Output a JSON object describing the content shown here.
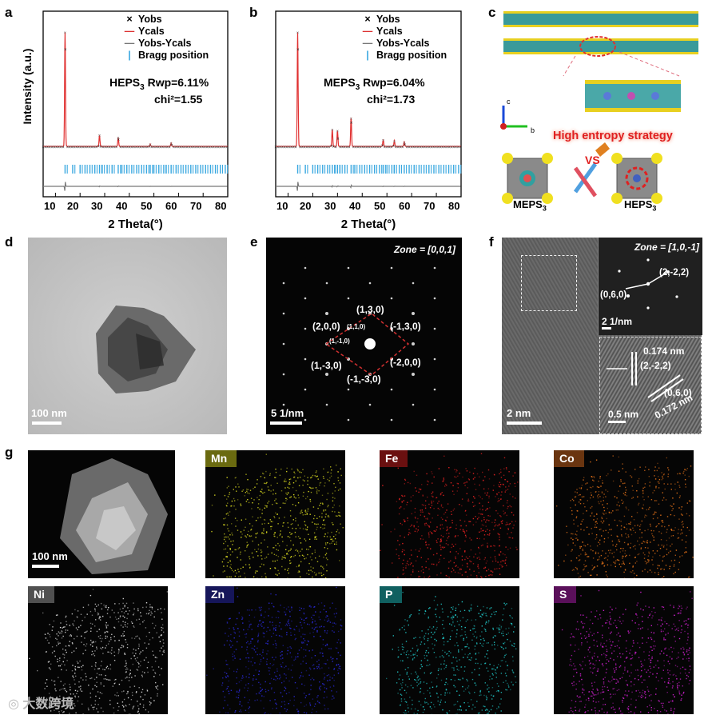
{
  "panels": {
    "a": {
      "label": "a",
      "legend": {
        "yobs": "Yobs",
        "ycals": "Ycals",
        "diff": "Yobs-Ycals",
        "bragg": "Bragg position"
      },
      "fit_name": "HEPS",
      "fit_sub": "3",
      "fit_rwp": "Rwp=6.11%",
      "fit_chi": "chi²=1.55",
      "ylabel": "Intensity (a.u.)",
      "xlabel": "2 Theta(°)",
      "xticks": [
        "10",
        "20",
        "30",
        "40",
        "50",
        "60",
        "70",
        "80"
      ]
    },
    "b": {
      "label": "b",
      "legend": {
        "yobs": "Yobs",
        "ycals": "Ycals",
        "diff": "Yobs-Ycals",
        "bragg": "Bragg position"
      },
      "fit_name": "MEPS",
      "fit_sub": "3",
      "fit_rwp": "Rwp=6.04%",
      "fit_chi": "chi²=1.73",
      "xlabel": "2 Theta(°)",
      "xticks": [
        "10",
        "20",
        "30",
        "40",
        "50",
        "60",
        "70",
        "80"
      ]
    },
    "c": {
      "label": "c",
      "axis_c": "c",
      "axis_b": "b",
      "strategy": "High entropy strategy",
      "vs": "VS",
      "meps": "MEPS",
      "meps_sub": "3",
      "heps": "HEPS",
      "heps_sub": "3"
    },
    "d": {
      "label": "d",
      "scale": "100 nm"
    },
    "e": {
      "label": "e",
      "zone": "Zone = [0,0,1]",
      "scale": "5 1/nm",
      "spots": [
        "(1,3,0)",
        "(-1,3,0)",
        "(2,0,0)",
        "(1,1,0)",
        "(1,-1,0)",
        "(1,-3,0)",
        "(-2,0,0)",
        "(-1,-3,0)"
      ]
    },
    "f": {
      "label": "f",
      "zone": "Zone = [1,0,-1]",
      "fft_a": "(2,-2,2)",
      "fft_b": "(0,6,0)",
      "fft_scale": "2 1/nm",
      "d1": "0.174 nm",
      "d1_plane": "(2,-2,2)",
      "d2_plane": "(0,6,0)",
      "d2": "0.172 nm",
      "scale_main": "2 nm",
      "scale_zoom": "0.5 nm"
    },
    "g": {
      "label": "g",
      "haadf_scale": "100 nm",
      "maps": [
        {
          "el": "Mn",
          "color": "#d8d820",
          "tag_bg": "#6a6a10"
        },
        {
          "el": "Fe",
          "color": "#e02020",
          "tag_bg": "#6a1010"
        },
        {
          "el": "Co",
          "color": "#e07018",
          "tag_bg": "#6a3510"
        },
        {
          "el": "Ni",
          "color": "#dcdcdc",
          "tag_bg": "#505050"
        },
        {
          "el": "Zn",
          "color": "#2a2ad8",
          "tag_bg": "#16165a"
        },
        {
          "el": "P",
          "color": "#20c8c8",
          "tag_bg": "#106060"
        },
        {
          "el": "S",
          "color": "#d020d0",
          "tag_bg": "#5a105a"
        }
      ]
    }
  },
  "chart_data": [
    {
      "type": "line",
      "title": "HEPS3 Rwp=6.11% chi²=1.55",
      "xlabel": "2 Theta(°)",
      "ylabel": "Intensity (a.u.)",
      "xlim": [
        5,
        80
      ],
      "series": [
        {
          "name": "Yobs",
          "peaks": [
            [
              13.9,
              100
            ],
            [
              27.9,
              10
            ],
            [
              35.5,
              8
            ],
            [
              48.5,
              2
            ],
            [
              57.0,
              3
            ]
          ]
        },
        {
          "name": "Ycals",
          "peaks": [
            [
              13.9,
              100
            ],
            [
              27.9,
              10
            ],
            [
              35.5,
              8
            ],
            [
              48.5,
              2
            ],
            [
              57.0,
              3
            ]
          ]
        },
        {
          "name": "Yobs-Ycals",
          "values": "flat near zero with small residual at 13.9"
        },
        {
          "name": "Bragg position",
          "x": [
            13.9,
            17,
            20,
            22,
            24,
            26,
            27.9,
            29,
            31,
            33,
            35.5,
            37,
            39,
            41,
            43,
            45,
            47,
            48.5,
            50,
            52,
            54,
            55,
            57,
            59,
            61,
            63,
            65,
            67,
            69,
            71,
            73,
            75,
            77,
            79
          ]
        }
      ]
    },
    {
      "type": "line",
      "title": "MEPS3 Rwp=6.04% chi²=1.73",
      "xlabel": "2 Theta(°)",
      "ylabel": "",
      "xlim": [
        5,
        80
      ],
      "series": [
        {
          "name": "Yobs",
          "peaks": [
            [
              13.9,
              100
            ],
            [
              27.9,
              15
            ],
            [
              30.0,
              14
            ],
            [
              35.5,
              25
            ],
            [
              48.5,
              6
            ],
            [
              53.0,
              5
            ],
            [
              57.0,
              4
            ]
          ]
        },
        {
          "name": "Ycals",
          "peaks": [
            [
              13.9,
              100
            ],
            [
              27.9,
              15
            ],
            [
              30.0,
              14
            ],
            [
              35.5,
              25
            ],
            [
              48.5,
              6
            ],
            [
              53.0,
              5
            ],
            [
              57.0,
              4
            ]
          ]
        },
        {
          "name": "Yobs-Ycals",
          "values": "flat near zero with small residual at 13.9 and 27.9"
        },
        {
          "name": "Bragg position",
          "x": [
            13.9,
            17,
            20,
            22,
            24,
            26,
            27.9,
            29,
            30,
            31,
            33,
            35.5,
            37,
            39,
            41,
            43,
            45,
            47,
            48.5,
            50,
            52,
            53,
            55,
            57,
            59,
            61,
            63,
            65,
            67,
            69,
            71,
            73,
            75,
            77,
            79
          ]
        }
      ]
    }
  ]
}
